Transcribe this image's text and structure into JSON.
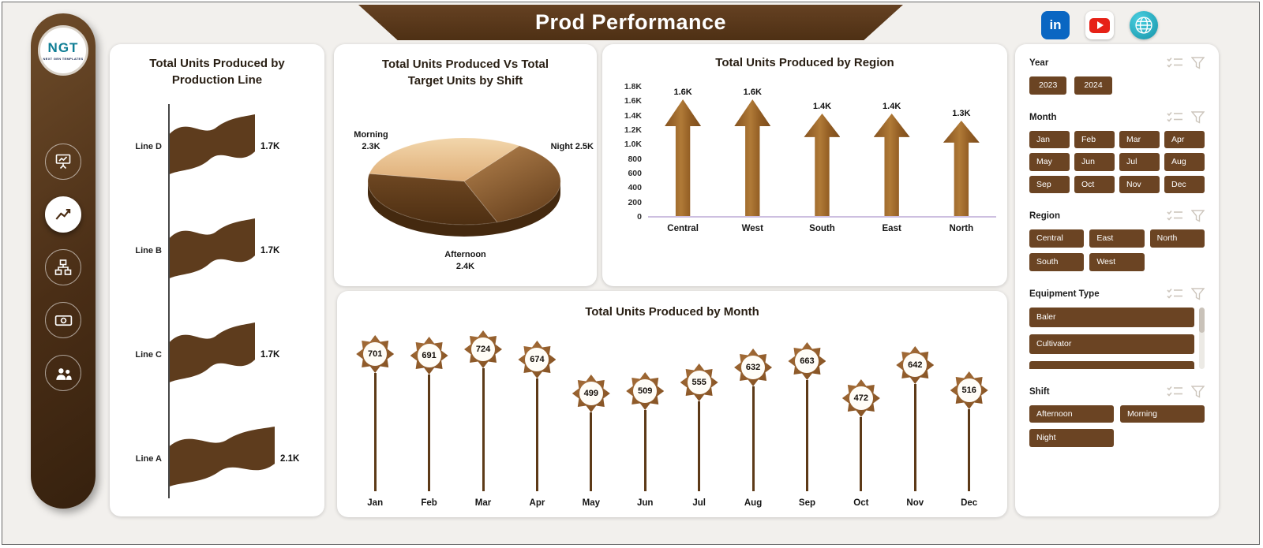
{
  "header": {
    "title": "Prod Performance"
  },
  "social": [
    {
      "name": "linkedin",
      "glyph": "in",
      "color": "#0a66c2"
    },
    {
      "name": "youtube",
      "color": "#e62117"
    },
    {
      "name": "web-globe",
      "color": "#1ba5b8"
    }
  ],
  "sidebar": {
    "logo_text": "NGT",
    "logo_subtext": "NEXT GEN TEMPLATES",
    "nav": [
      {
        "name": "presentation",
        "active": false
      },
      {
        "name": "trend",
        "active": true
      },
      {
        "name": "hierarchy",
        "active": false
      },
      {
        "name": "cash",
        "active": false
      },
      {
        "name": "people",
        "active": false
      }
    ]
  },
  "chart_data": [
    {
      "id": "production_line",
      "type": "bar",
      "orientation": "horizontal",
      "marker": "flag",
      "title": "Total Units Produced by Production Line",
      "categories": [
        "Line D",
        "Line B",
        "Line C",
        "Line A"
      ],
      "values": [
        1700,
        1700,
        1700,
        2100
      ],
      "labels": [
        "1.7K",
        "1.7K",
        "1.7K",
        "2.1K"
      ]
    },
    {
      "id": "shift_pie",
      "type": "pie",
      "title": "Total Units Produced Vs Total Target Units by Shift",
      "categories": [
        "Morning",
        "Night",
        "Afternoon"
      ],
      "values": [
        2300,
        2500,
        2400
      ],
      "labels": [
        "2.3K",
        "2.5K",
        "2.4K"
      ],
      "colors": [
        "#eccb9e",
        "#8a5a2e",
        "#5e3b1b"
      ]
    },
    {
      "id": "region",
      "type": "bar",
      "marker": "arrow",
      "title": "Total Units Produced by Region",
      "categories": [
        "Central",
        "West",
        "South",
        "East",
        "North"
      ],
      "values": [
        1600,
        1600,
        1400,
        1400,
        1300
      ],
      "labels": [
        "1.6K",
        "1.6K",
        "1.4K",
        "1.4K",
        "1.3K"
      ],
      "ylim": [
        0,
        1800
      ],
      "yticks": [
        "1.8K",
        "1.6K",
        "1.4K",
        "1.2K",
        "1.0K",
        "800",
        "600",
        "400",
        "200",
        "0"
      ]
    },
    {
      "id": "month",
      "type": "bar",
      "marker": "star-lollipop",
      "title": "Total Units Produced by Month",
      "categories": [
        "Jan",
        "Feb",
        "Mar",
        "Apr",
        "May",
        "Jun",
        "Jul",
        "Aug",
        "Sep",
        "Oct",
        "Nov",
        "Dec"
      ],
      "values": [
        701,
        691,
        724,
        674,
        499,
        509,
        555,
        632,
        663,
        472,
        642,
        516
      ]
    }
  ],
  "filters": [
    {
      "id": "year",
      "label": "Year",
      "options": [
        "2023",
        "2024"
      ]
    },
    {
      "id": "month",
      "label": "Month",
      "options": [
        "Jan",
        "Feb",
        "Mar",
        "Apr",
        "May",
        "Jun",
        "Jul",
        "Aug",
        "Sep",
        "Oct",
        "Nov",
        "Dec"
      ]
    },
    {
      "id": "region",
      "label": "Region",
      "options": [
        "Central",
        "East",
        "North",
        "South",
        "West"
      ]
    },
    {
      "id": "equipment",
      "label": "Equipment Type",
      "options": [
        "Baler",
        "Cultivator"
      ],
      "scrollbar": true,
      "partial_row": true
    },
    {
      "id": "shift",
      "label": "Shift",
      "options": [
        "Afternoon",
        "Morning",
        "Night"
      ]
    }
  ],
  "colors": {
    "page_bg": "#f2f0ed",
    "panel_bg": "#ffffff",
    "accent_dark": "#4a2d14",
    "accent": "#6b4423",
    "accent_mid": "#9a6527",
    "tan": "#eccb9e"
  }
}
